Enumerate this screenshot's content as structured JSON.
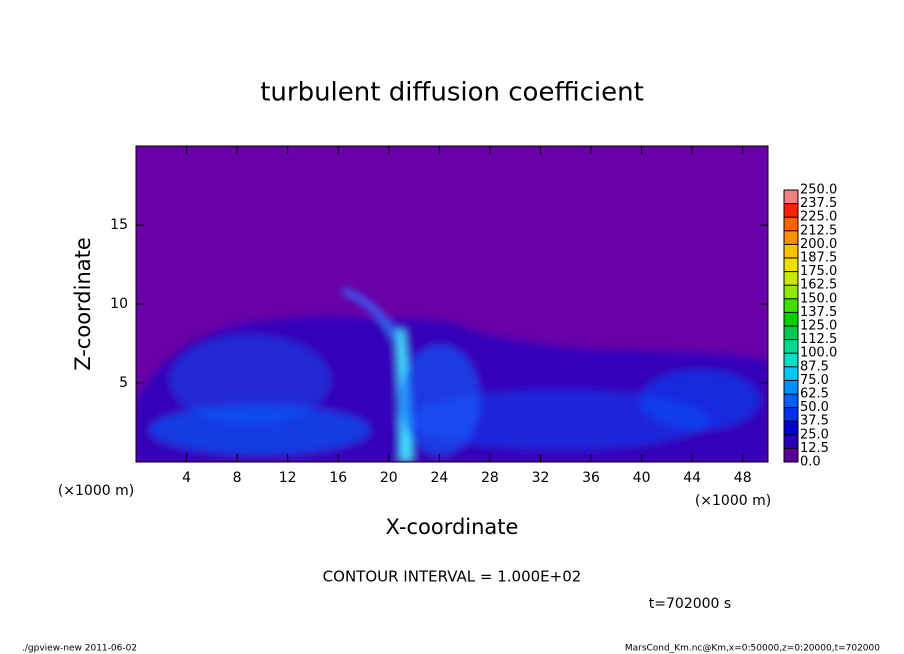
{
  "chart_data": {
    "type": "heatmap",
    "title": "turbulent diffusion coefficient",
    "xlabel": "X-coordinate",
    "ylabel": "Z-coordinate",
    "unit_labels": [
      "(×1000 m)",
      "(×1000 m)"
    ],
    "xlim": [
      0,
      50
    ],
    "xticks": [
      4,
      8,
      12,
      16,
      20,
      24,
      28,
      32,
      36,
      40,
      44,
      48
    ],
    "ylim": [
      0,
      20
    ],
    "yticks": [
      5,
      10,
      15
    ],
    "contour_interval": "CONTOUR INTERVAL = 1.000E+02",
    "time_label": "t=702000 s",
    "footer_left": "./gpview-new  2011-06-02",
    "footer_right": "MarsCond_Km.nc@Km,x=0:50000,z=0:20000,t=702000",
    "colorbar": {
      "levels": [
        {
          "value": 0,
          "label": "0.0"
        },
        12.5,
        {
          "value": 25,
          "label": "25.0"
        },
        37.5,
        {
          "value": 50,
          "label": "50.0"
        },
        62.5,
        {
          "value": 75,
          "label": "75.0"
        },
        87.5,
        {
          "value": 100,
          "label": "100.0"
        },
        112.5,
        {
          "value": 125,
          "label": "125.0"
        },
        137.5,
        {
          "value": 150,
          "label": "150.0"
        },
        162.5,
        {
          "value": 175,
          "label": "175.0"
        },
        187.5,
        {
          "value": 200,
          "label": "200.0"
        },
        212.5,
        {
          "value": 225,
          "label": "225.0"
        },
        237.5,
        {
          "value": 250,
          "label": "250.0"
        }
      ],
      "colors": [
        "#5a0096",
        "#2800b4",
        "#0000d2",
        "#0030f0",
        "#0060ff",
        "#0090ff",
        "#00c8ff",
        "#00e0c8",
        "#00d890",
        "#00c850",
        "#00d000",
        "#40e000",
        "#90e800",
        "#c8e800",
        "#f0e000",
        "#ffc000",
        "#ff9000",
        "#ff6000",
        "#ff2000",
        "#f08080"
      ]
    }
  }
}
